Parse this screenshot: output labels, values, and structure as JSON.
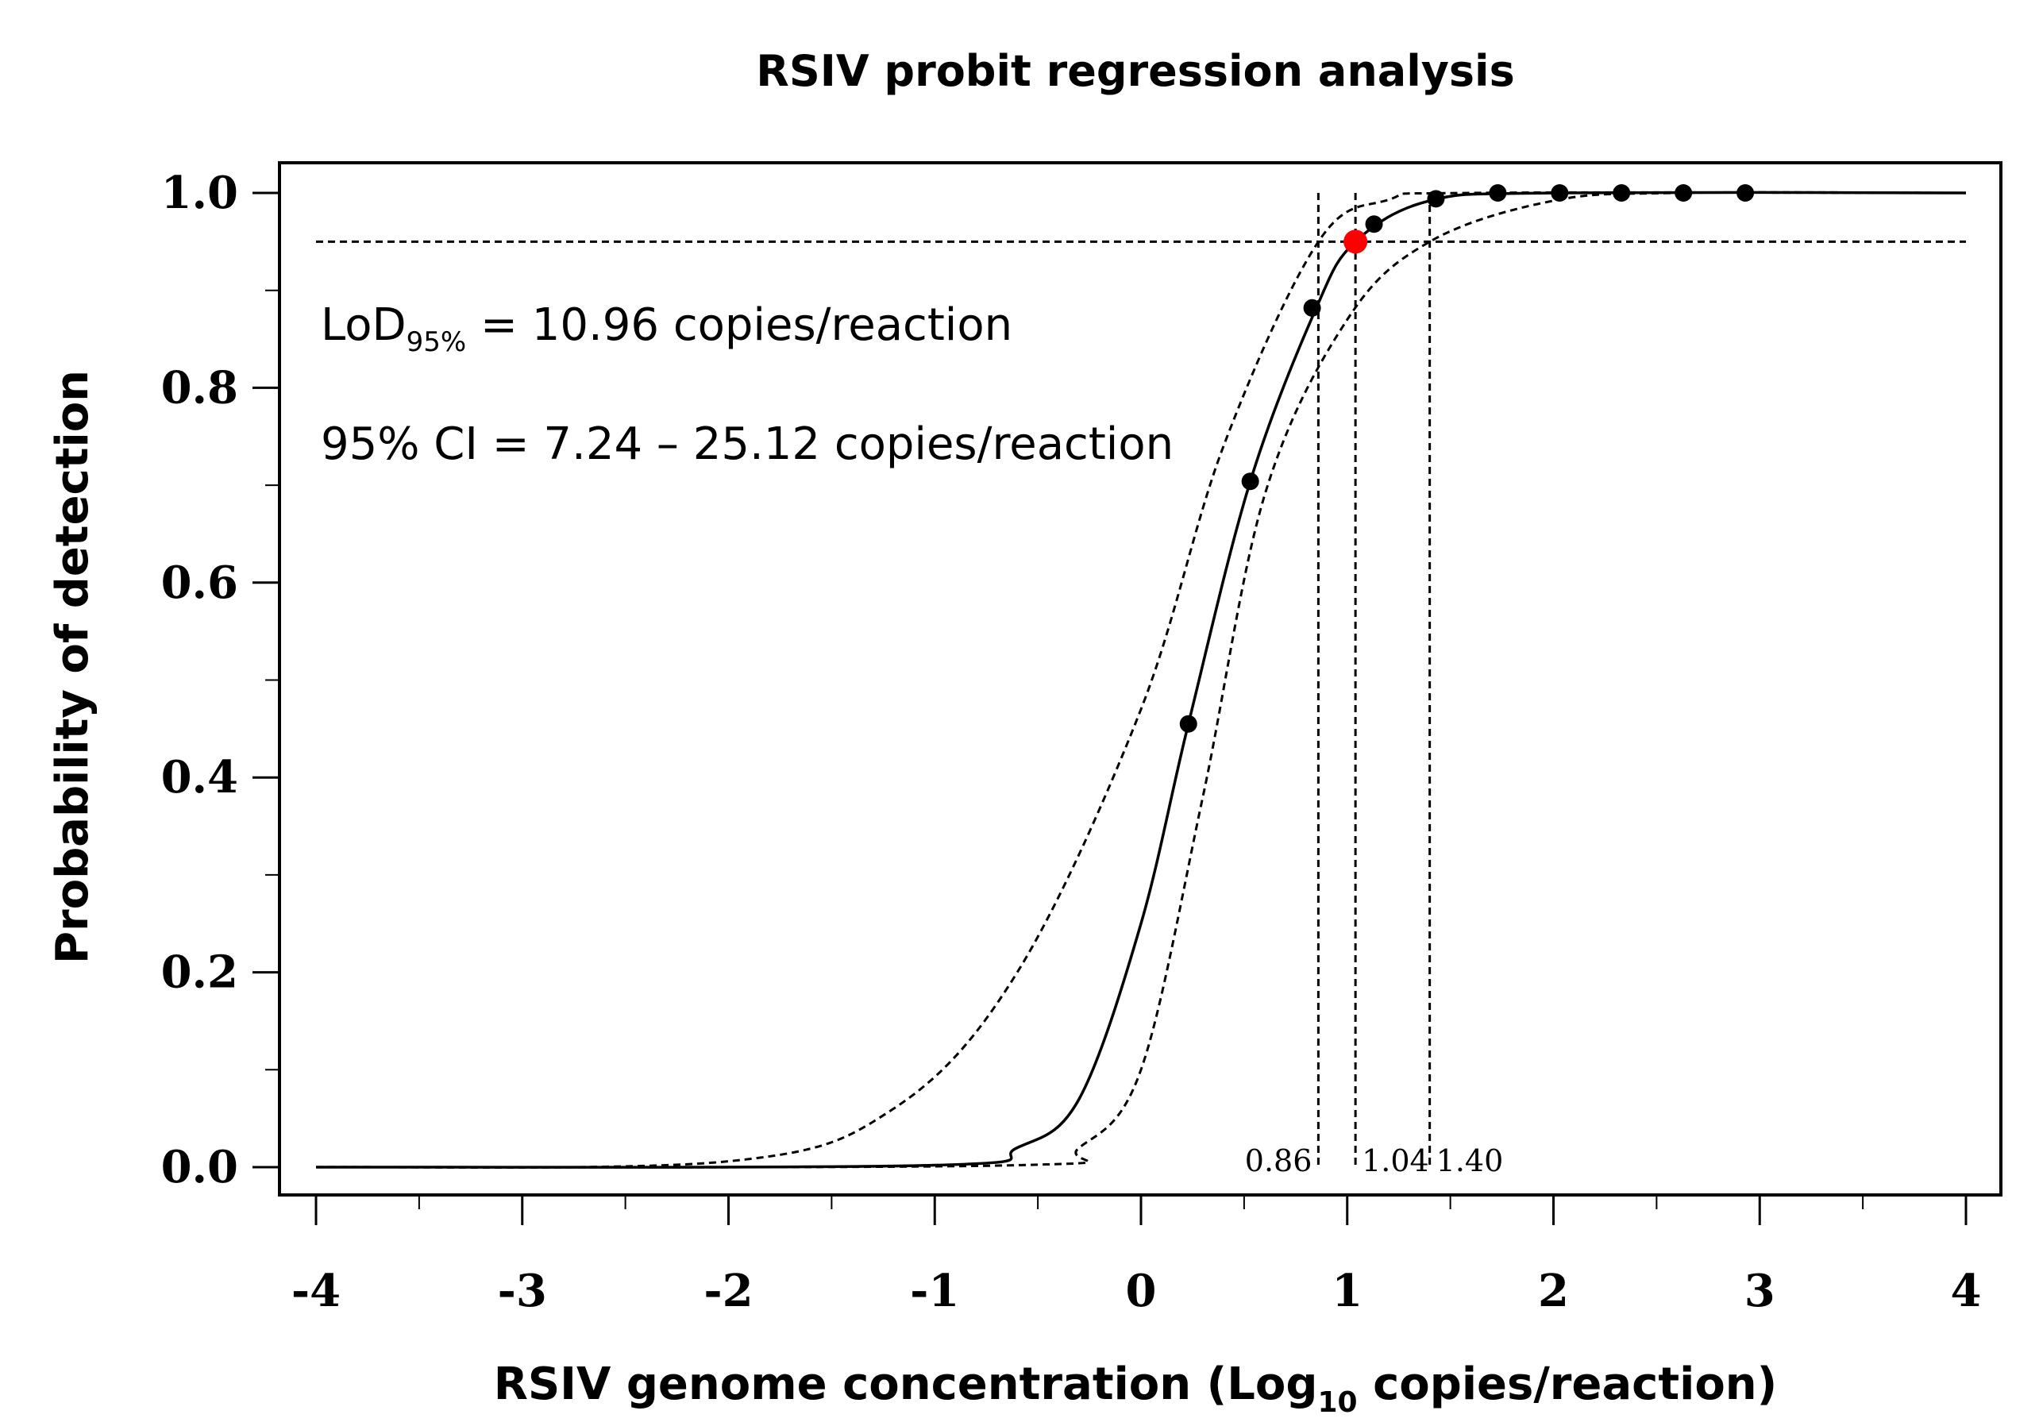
{
  "chart_data": {
    "type": "line",
    "title": "RSIV probit regression analysis",
    "xlabel_main": "RSIV genome concentration (Log",
    "xlabel_sub": "10",
    "xlabel_tail": " copies/reaction)",
    "ylabel": "Probability of detection",
    "xlim": [
      -4,
      4
    ],
    "ylim": [
      0,
      1
    ],
    "x_ticks": [
      "-4",
      "-3",
      "-2",
      "-1",
      "0",
      "1",
      "2",
      "3",
      "4"
    ],
    "y_ticks": [
      "0.0",
      "0.2",
      "0.4",
      "0.6",
      "0.8",
      "1.0"
    ],
    "series": [
      {
        "name": "probit fit",
        "style": "solid",
        "points": [
          [
            -4,
            0.0
          ],
          [
            -1.0,
            0.002
          ],
          [
            -0.6,
            0.02
          ],
          [
            -0.3,
            0.07
          ],
          [
            0.0,
            0.25
          ],
          [
            0.23,
            0.455
          ],
          [
            0.53,
            0.704
          ],
          [
            0.85,
            0.882
          ],
          [
            1.04,
            0.95
          ],
          [
            1.4,
            0.992
          ],
          [
            2.0,
            1.0
          ],
          [
            4.0,
            1.0
          ]
        ]
      },
      {
        "name": "lower 95% CI",
        "style": "dashed",
        "points": [
          [
            -4,
            0.0
          ],
          [
            -2.0,
            0.006
          ],
          [
            -1.2,
            0.06
          ],
          [
            -0.6,
            0.2
          ],
          [
            0.0,
            0.47
          ],
          [
            0.4,
            0.74
          ],
          [
            0.86,
            0.95
          ],
          [
            1.2,
            0.993
          ],
          [
            1.6,
            1.0
          ],
          [
            4.0,
            1.0
          ]
        ]
      },
      {
        "name": "upper 95% CI",
        "style": "dashed",
        "points": [
          [
            -4,
            0.0
          ],
          [
            -0.6,
            0.002
          ],
          [
            -0.3,
            0.02
          ],
          [
            0.0,
            0.1
          ],
          [
            0.3,
            0.38
          ],
          [
            0.6,
            0.69
          ],
          [
            1.0,
            0.87
          ],
          [
            1.4,
            0.95
          ],
          [
            2.0,
            0.992
          ],
          [
            2.6,
            1.0
          ],
          [
            4.0,
            1.0
          ]
        ]
      }
    ],
    "observed_points": {
      "x": [
        0.23,
        0.53,
        0.83,
        1.13,
        1.43,
        1.73,
        2.03,
        2.33,
        2.63,
        2.93
      ],
      "y": [
        0.455,
        0.704,
        0.882,
        0.968,
        0.994,
        1.0,
        1.0,
        1.0,
        1.0,
        1.0
      ]
    },
    "lod_point": {
      "x": 1.04,
      "y": 0.95,
      "color": "#ff0000"
    },
    "reference_line": {
      "y": 0.95
    },
    "vertical_lines": [
      {
        "x": 0.86,
        "label": "0.86",
        "side": "left"
      },
      {
        "x": 1.04,
        "label": "1.04",
        "side": "right"
      },
      {
        "x": 1.4,
        "label": "1.40",
        "side": "right"
      }
    ],
    "annotations": {
      "lod_prefix": "LoD",
      "lod_sub": "95%",
      "lod_value": " = 10.96 copies/reaction",
      "ci": "95% CI = 7.24 – 25.12 copies/reaction"
    }
  }
}
